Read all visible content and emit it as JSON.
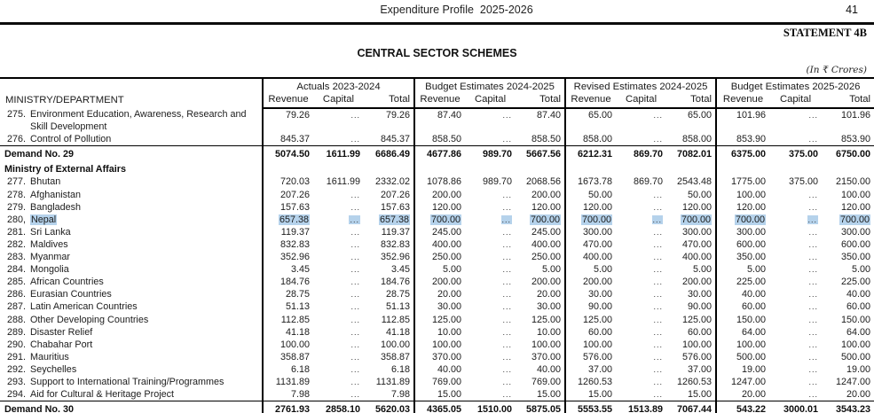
{
  "header": {
    "doc_title": "Expenditure Profile  2025-2026",
    "page_number": "41",
    "statement": "STATEMENT 4B",
    "section_title": "CENTRAL SECTOR SCHEMES",
    "units_note": "(In ₹ Crores)"
  },
  "table": {
    "ministry_header": "MINISTRY/DEPARTMENT",
    "groups": [
      {
        "label": "Actuals 2023-2024"
      },
      {
        "label": "Budget Estimates 2024-2025"
      },
      {
        "label": "Revised Estimates 2024-2025"
      },
      {
        "label": "Budget Estimates 2025-2026"
      }
    ],
    "sub_headers": [
      "Revenue",
      "Capital",
      "Total"
    ],
    "highlight_color": "#b5d2eb",
    "rows": [
      {
        "type": "item",
        "num": "275.",
        "name": "Environment Education, Awareness, Research and Skill Development",
        "highlight": false,
        "values": [
          "79.26",
          "...",
          "79.26",
          "87.40",
          "...",
          "87.40",
          "65.00",
          "...",
          "65.00",
          "101.96",
          "...",
          "101.96"
        ]
      },
      {
        "type": "item",
        "num": "276.",
        "name": "Control of Pollution",
        "highlight": false,
        "values": [
          "845.37",
          "...",
          "845.37",
          "858.50",
          "...",
          "858.50",
          "858.00",
          "...",
          "858.00",
          "853.90",
          "...",
          "853.90"
        ]
      },
      {
        "type": "demand",
        "name": "Demand No. 29",
        "values": [
          "5074.50",
          "1611.99",
          "6686.49",
          "4677.86",
          "989.70",
          "5667.56",
          "6212.31",
          "869.70",
          "7082.01",
          "6375.00",
          "375.00",
          "6750.00"
        ]
      },
      {
        "type": "ministry",
        "name": "Ministry of External Affairs",
        "values": []
      },
      {
        "type": "item",
        "num": "277.",
        "name": "Bhutan",
        "highlight": false,
        "values": [
          "720.03",
          "1611.99",
          "2332.02",
          "1078.86",
          "989.70",
          "2068.56",
          "1673.78",
          "869.70",
          "2543.48",
          "1775.00",
          "375.00",
          "2150.00"
        ]
      },
      {
        "type": "item",
        "num": "278.",
        "name": "Afghanistan",
        "highlight": false,
        "values": [
          "207.26",
          "...",
          "207.26",
          "200.00",
          "...",
          "200.00",
          "50.00",
          "...",
          "50.00",
          "100.00",
          "...",
          "100.00"
        ]
      },
      {
        "type": "item",
        "num": "279.",
        "name": "Bangladesh",
        "highlight": false,
        "values": [
          "157.63",
          "...",
          "157.63",
          "120.00",
          "...",
          "120.00",
          "120.00",
          "...",
          "120.00",
          "120.00",
          "...",
          "120.00"
        ]
      },
      {
        "type": "item",
        "num": "280,",
        "name": "Nepal",
        "highlight": true,
        "values": [
          "657.38",
          "...",
          "657.38",
          "700.00",
          "...",
          "700.00",
          "700.00",
          "...",
          "700.00",
          "700.00",
          "...",
          "700.00"
        ]
      },
      {
        "type": "item",
        "num": "281.",
        "name": "Sri Lanka",
        "highlight": false,
        "values": [
          "119.37",
          "...",
          "119.37",
          "245.00",
          "...",
          "245.00",
          "300.00",
          "...",
          "300.00",
          "300.00",
          "...",
          "300.00"
        ]
      },
      {
        "type": "item",
        "num": "282.",
        "name": "Maldives",
        "highlight": false,
        "values": [
          "832.83",
          "...",
          "832.83",
          "400.00",
          "...",
          "400.00",
          "470.00",
          "...",
          "470.00",
          "600.00",
          "...",
          "600.00"
        ]
      },
      {
        "type": "item",
        "num": "283.",
        "name": "Myanmar",
        "highlight": false,
        "values": [
          "352.96",
          "...",
          "352.96",
          "250.00",
          "...",
          "250.00",
          "400.00",
          "...",
          "400.00",
          "350.00",
          "...",
          "350.00"
        ]
      },
      {
        "type": "item",
        "num": "284.",
        "name": "Mongolia",
        "highlight": false,
        "values": [
          "3.45",
          "...",
          "3.45",
          "5.00",
          "...",
          "5.00",
          "5.00",
          "...",
          "5.00",
          "5.00",
          "...",
          "5.00"
        ]
      },
      {
        "type": "item",
        "num": "285.",
        "name": "African Countries",
        "highlight": false,
        "values": [
          "184.76",
          "...",
          "184.76",
          "200.00",
          "...",
          "200.00",
          "200.00",
          "...",
          "200.00",
          "225.00",
          "...",
          "225.00"
        ]
      },
      {
        "type": "item",
        "num": "286.",
        "name": "Eurasian Countries",
        "highlight": false,
        "values": [
          "28.75",
          "...",
          "28.75",
          "20.00",
          "...",
          "20.00",
          "30.00",
          "...",
          "30.00",
          "40.00",
          "...",
          "40.00"
        ]
      },
      {
        "type": "item",
        "num": "287.",
        "name": "Latin American Countries",
        "highlight": false,
        "values": [
          "51.13",
          "...",
          "51.13",
          "30.00",
          "...",
          "30.00",
          "90.00",
          "...",
          "90.00",
          "60.00",
          "...",
          "60.00"
        ]
      },
      {
        "type": "item",
        "num": "288.",
        "name": "Other Developing Countries",
        "highlight": false,
        "values": [
          "112.85",
          "...",
          "112.85",
          "125.00",
          "...",
          "125.00",
          "125.00",
          "...",
          "125.00",
          "150.00",
          "...",
          "150.00"
        ]
      },
      {
        "type": "item",
        "num": "289.",
        "name": "Disaster Relief",
        "highlight": false,
        "values": [
          "41.18",
          "...",
          "41.18",
          "10.00",
          "...",
          "10.00",
          "60.00",
          "...",
          "60.00",
          "64.00",
          "...",
          "64.00"
        ]
      },
      {
        "type": "item",
        "num": "290.",
        "name": "Chabahar Port",
        "highlight": false,
        "values": [
          "100.00",
          "...",
          "100.00",
          "100.00",
          "...",
          "100.00",
          "100.00",
          "...",
          "100.00",
          "100.00",
          "...",
          "100.00"
        ]
      },
      {
        "type": "item",
        "num": "291.",
        "name": "Mauritius",
        "highlight": false,
        "values": [
          "358.87",
          "...",
          "358.87",
          "370.00",
          "...",
          "370.00",
          "576.00",
          "...",
          "576.00",
          "500.00",
          "...",
          "500.00"
        ]
      },
      {
        "type": "item",
        "num": "292.",
        "name": "Seychelles",
        "highlight": false,
        "values": [
          "6.18",
          "...",
          "6.18",
          "40.00",
          "...",
          "40.00",
          "37.00",
          "...",
          "37.00",
          "19.00",
          "...",
          "19.00"
        ]
      },
      {
        "type": "item",
        "num": "293.",
        "name": "Support to International Training/Programmes",
        "highlight": false,
        "values": [
          "1131.89",
          "...",
          "1131.89",
          "769.00",
          "...",
          "769.00",
          "1260.53",
          "...",
          "1260.53",
          "1247.00",
          "...",
          "1247.00"
        ]
      },
      {
        "type": "item",
        "num": "294.",
        "name": "Aid for Cultural & Heritage Project",
        "highlight": false,
        "values": [
          "7.98",
          "...",
          "7.98",
          "15.00",
          "...",
          "15.00",
          "15.00",
          "...",
          "15.00",
          "20.00",
          "...",
          "20.00"
        ]
      },
      {
        "type": "demand",
        "name": "Demand No. 30",
        "values": [
          "2761.93",
          "2858.10",
          "5620.03",
          "4365.05",
          "1510.00",
          "5875.05",
          "5553.55",
          "1513.89",
          "7067.44",
          "543.22",
          "3000.01",
          "3543.23"
        ]
      }
    ]
  }
}
